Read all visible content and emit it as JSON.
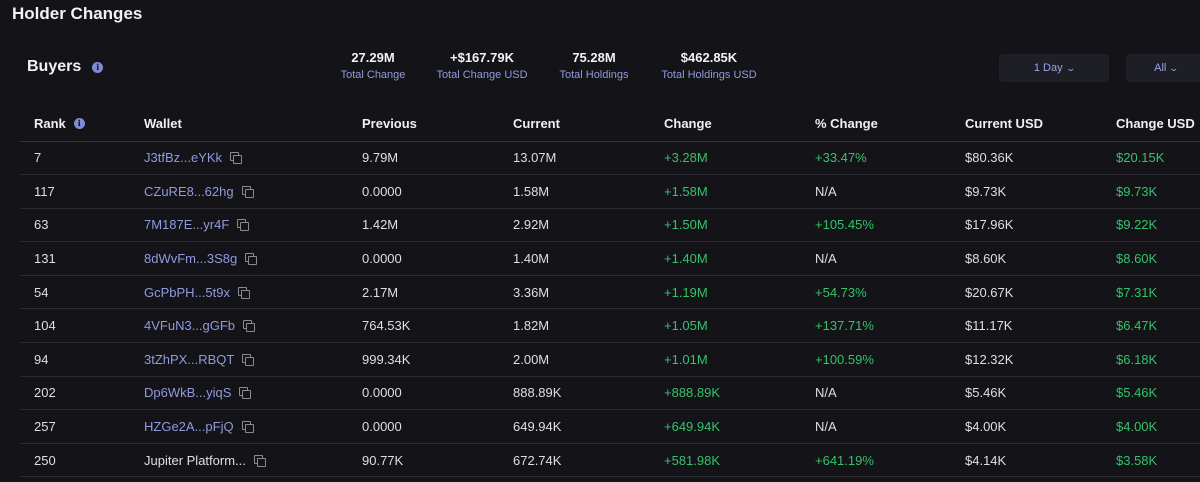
{
  "page": {
    "title": "Holder Changes"
  },
  "section": {
    "title": "Buyers",
    "info_icon": "info-icon"
  },
  "stats": [
    {
      "value": "27.29M",
      "label": "Total Change"
    },
    {
      "value": "+$167.79K",
      "label": "Total Change USD"
    },
    {
      "value": "75.28M",
      "label": "Total Holdings"
    },
    {
      "value": "$462.85K",
      "label": "Total Holdings USD"
    }
  ],
  "controls": {
    "period": {
      "label": "1 Day",
      "icon": "chevron-down-icon"
    },
    "filter": {
      "label": "All",
      "icon": "chevron-down-icon"
    }
  },
  "table": {
    "headers": [
      "Rank",
      "Wallet",
      "Previous",
      "Current",
      "Change",
      "% Change",
      "Current USD",
      "Change USD"
    ],
    "rows": [
      {
        "rank": "7",
        "wallet": "J3tfBz...eYKk",
        "linked": true,
        "previous": "9.79M",
        "current": "13.07M",
        "change": "+3.28M",
        "pct": "+33.47%",
        "current_usd": "$80.36K",
        "change_usd": "$20.15K"
      },
      {
        "rank": "117",
        "wallet": "CZuRE8...62hg",
        "linked": true,
        "previous": "0.0000",
        "current": "1.58M",
        "change": "+1.58M",
        "pct": "N/A",
        "current_usd": "$9.73K",
        "change_usd": "$9.73K"
      },
      {
        "rank": "63",
        "wallet": "7M187E...yr4F",
        "linked": true,
        "previous": "1.42M",
        "current": "2.92M",
        "change": "+1.50M",
        "pct": "+105.45%",
        "current_usd": "$17.96K",
        "change_usd": "$9.22K"
      },
      {
        "rank": "131",
        "wallet": "8dWvFm...3S8g",
        "linked": true,
        "previous": "0.0000",
        "current": "1.40M",
        "change": "+1.40M",
        "pct": "N/A",
        "current_usd": "$8.60K",
        "change_usd": "$8.60K"
      },
      {
        "rank": "54",
        "wallet": "GcPbPH...5t9x",
        "linked": true,
        "previous": "2.17M",
        "current": "3.36M",
        "change": "+1.19M",
        "pct": "+54.73%",
        "current_usd": "$20.67K",
        "change_usd": "$7.31K"
      },
      {
        "rank": "104",
        "wallet": "4VFuN3...gGFb",
        "linked": true,
        "previous": "764.53K",
        "current": "1.82M",
        "change": "+1.05M",
        "pct": "+137.71%",
        "current_usd": "$11.17K",
        "change_usd": "$6.47K"
      },
      {
        "rank": "94",
        "wallet": "3tZhPX...RBQT",
        "linked": true,
        "previous": "999.34K",
        "current": "2.00M",
        "change": "+1.01M",
        "pct": "+100.59%",
        "current_usd": "$12.32K",
        "change_usd": "$6.18K"
      },
      {
        "rank": "202",
        "wallet": "Dp6WkB...yiqS",
        "linked": true,
        "previous": "0.0000",
        "current": "888.89K",
        "change": "+888.89K",
        "pct": "N/A",
        "current_usd": "$5.46K",
        "change_usd": "$5.46K"
      },
      {
        "rank": "257",
        "wallet": "HZGe2A...pFjQ",
        "linked": true,
        "previous": "0.0000",
        "current": "649.94K",
        "change": "+649.94K",
        "pct": "N/A",
        "current_usd": "$4.00K",
        "change_usd": "$4.00K"
      },
      {
        "rank": "250",
        "wallet": "Jupiter Platform...",
        "linked": false,
        "previous": "90.77K",
        "current": "672.74K",
        "change": "+581.98K",
        "pct": "+641.19%",
        "current_usd": "$4.14K",
        "change_usd": "$3.58K"
      }
    ]
  },
  "colors": {
    "background": "#131318",
    "accent": "#8f9bdc",
    "positive": "#35c26a",
    "text": "#dedee4"
  }
}
